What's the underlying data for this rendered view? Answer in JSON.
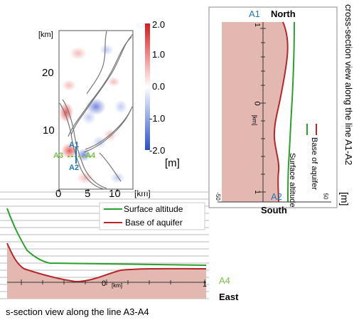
{
  "map": {
    "km_label": "[km]",
    "y_ticks": [
      "20",
      "10"
    ],
    "x_ticks": [
      "0",
      "5",
      "10"
    ],
    "x_unit": "[km]",
    "markers": {
      "a1": "A1",
      "a2": "A2",
      "a3": "A3",
      "a4": "A4"
    },
    "colorbar": {
      "ticks": [
        "2.0",
        "1.0",
        "0.0",
        "-1.0",
        "-2.0"
      ],
      "unit": "[m]",
      "top_color": "#d7191c",
      "mid_color": "#ffffff",
      "bottom_color": "#2b4fc7"
    }
  },
  "section_a1a2": {
    "caption": "cross-section view along the line A1-A2",
    "north_label": "North",
    "south_label": "South",
    "marker_top": "A1",
    "marker_bottom": "A2",
    "km_tick_top": "1",
    "km_tick_mid": "0",
    "km_tick_bottom": "1",
    "km_unit": "[km]",
    "m_tick_left": "-50",
    "m_tick_right": "50",
    "unit_m": "[m]",
    "legend_surface": "Surface altitude",
    "legend_base": "Base of aquifer",
    "surface_color": "#2ca02c",
    "base_color": "#b5262b",
    "fill_color": "#e2b8b0"
  },
  "section_a3a4": {
    "caption": "s-section view along the line A3-A4",
    "east_label": "East",
    "marker_right": "A4",
    "km_tick_mid": "0",
    "km_unit": "[km]",
    "km_tick_right": "1",
    "legend_surface": "Surface altitude",
    "legend_base": "Base of aquifer",
    "surface_color": "#2ca02c",
    "base_color": "#b5262b",
    "fill_color": "#e2b8b0"
  }
}
